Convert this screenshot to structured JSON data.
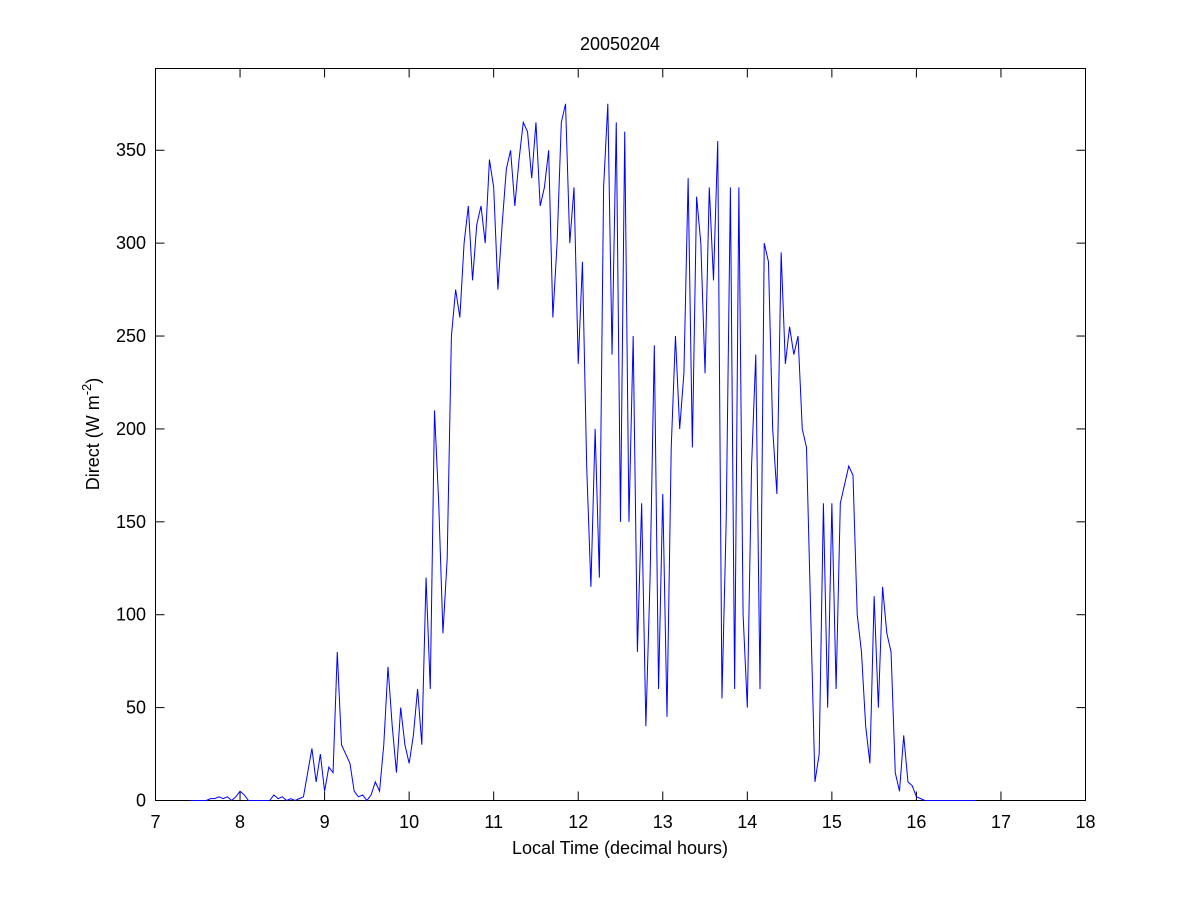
{
  "chart_data": {
    "type": "line",
    "title": "20050204",
    "x_label": "Local Time (decimal hours)",
    "y_label": {
      "text": "Direct (W m",
      "superscript": "-2",
      "suffix": ")"
    },
    "xlim": [
      7,
      18
    ],
    "xticks": [
      7,
      8,
      9,
      10,
      11,
      12,
      13,
      14,
      15,
      16,
      17,
      18
    ],
    "ylim": [
      0,
      394
    ],
    "yticks": [
      0,
      50,
      100,
      150,
      200,
      250,
      300,
      350
    ],
    "grid": false,
    "series": [
      {
        "color": "#0000ff",
        "x": [
          7.4,
          7.45,
          7.5,
          7.55,
          7.6,
          7.65,
          7.7,
          7.75,
          7.8,
          7.85,
          7.9,
          7.95,
          8.0,
          8.05,
          8.1,
          8.15,
          8.2,
          8.25,
          8.3,
          8.35,
          8.4,
          8.45,
          8.5,
          8.55,
          8.6,
          8.65,
          8.7,
          8.75,
          8.8,
          8.85,
          8.9,
          8.95,
          9.0,
          9.05,
          9.1,
          9.15,
          9.2,
          9.25,
          9.3,
          9.35,
          9.4,
          9.45,
          9.5,
          9.55,
          9.6,
          9.65,
          9.7,
          9.75,
          9.8,
          9.85,
          9.9,
          9.95,
          10.0,
          10.05,
          10.1,
          10.15,
          10.2,
          10.25,
          10.3,
          10.35,
          10.4,
          10.45,
          10.5,
          10.55,
          10.6,
          10.65,
          10.7,
          10.75,
          10.8,
          10.85,
          10.9,
          10.95,
          11.0,
          11.05,
          11.1,
          11.15,
          11.2,
          11.25,
          11.3,
          11.35,
          11.4,
          11.45,
          11.5,
          11.55,
          11.6,
          11.65,
          11.7,
          11.75,
          11.8,
          11.85,
          11.9,
          11.95,
          12.0,
          12.05,
          12.1,
          12.15,
          12.2,
          12.25,
          12.3,
          12.35,
          12.4,
          12.45,
          12.5,
          12.55,
          12.6,
          12.65,
          12.7,
          12.75,
          12.8,
          12.85,
          12.9,
          12.95,
          13.0,
          13.05,
          13.1,
          13.15,
          13.2,
          13.25,
          13.3,
          13.35,
          13.4,
          13.45,
          13.5,
          13.55,
          13.6,
          13.65,
          13.7,
          13.75,
          13.8,
          13.85,
          13.9,
          13.95,
          14.0,
          14.05,
          14.1,
          14.15,
          14.2,
          14.25,
          14.3,
          14.35,
          14.4,
          14.45,
          14.5,
          14.55,
          14.6,
          14.65,
          14.7,
          14.75,
          14.8,
          14.85,
          14.9,
          14.95,
          15.0,
          15.05,
          15.1,
          15.15,
          15.2,
          15.25,
          15.3,
          15.35,
          15.4,
          15.45,
          15.5,
          15.55,
          15.6,
          15.65,
          15.7,
          15.75,
          15.8,
          15.85,
          15.9,
          15.95,
          16.0,
          16.05,
          16.1,
          16.15,
          16.2,
          16.25,
          16.3,
          16.35,
          16.4,
          16.45,
          16.5,
          16.55,
          16.6,
          16.65,
          16.7
        ],
        "values": [
          0,
          0,
          0,
          0,
          0,
          1,
          1,
          2,
          1,
          2,
          0,
          2,
          5,
          3,
          0,
          0,
          0,
          0,
          0,
          0,
          3,
          1,
          2,
          0,
          1,
          0,
          1,
          2,
          15,
          28,
          10,
          25,
          5,
          18,
          15,
          80,
          30,
          25,
          20,
          5,
          2,
          3,
          0,
          3,
          10,
          5,
          30,
          72,
          40,
          15,
          50,
          30,
          20,
          35,
          60,
          30,
          120,
          60,
          210,
          160,
          90,
          130,
          250,
          275,
          260,
          300,
          320,
          280,
          310,
          320,
          300,
          345,
          330,
          275,
          310,
          340,
          350,
          320,
          345,
          365,
          360,
          335,
          365,
          320,
          330,
          350,
          260,
          300,
          365,
          375,
          300,
          330,
          235,
          290,
          180,
          115,
          200,
          120,
          330,
          375,
          240,
          365,
          150,
          360,
          150,
          250,
          80,
          160,
          40,
          120,
          245,
          60,
          165,
          45,
          190,
          250,
          200,
          230,
          335,
          190,
          325,
          300,
          230,
          330,
          280,
          355,
          55,
          150,
          330,
          60,
          330,
          100,
          50,
          180,
          240,
          60,
          300,
          290,
          200,
          165,
          295,
          235,
          255,
          240,
          250,
          200,
          190,
          100,
          10,
          25,
          160,
          50,
          160,
          60,
          160,
          170,
          180,
          175,
          100,
          80,
          40,
          20,
          110,
          50,
          115,
          90,
          80,
          15,
          5,
          35,
          10,
          8,
          2,
          1,
          0,
          0,
          0,
          0,
          0,
          0,
          0,
          0,
          0,
          0,
          0,
          0,
          0
        ]
      }
    ]
  }
}
